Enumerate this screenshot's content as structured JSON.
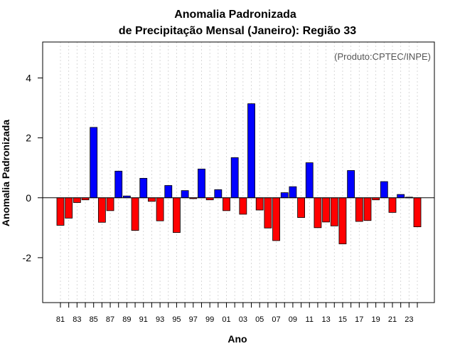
{
  "chart_data": {
    "type": "bar",
    "title": [
      "Anomalia Padronizada",
      "de Precipitação Mensal (Janeiro): Região 33"
    ],
    "xlabel": "Ano",
    "ylabel": "Anomalia Padronizada",
    "credit": "(Produto:CPTEC/INPE)",
    "ylim": [
      -3.5,
      5.2
    ],
    "yticks": [
      -2,
      0,
      2,
      4
    ],
    "ytick_labels": [
      "-2",
      "0",
      "2",
      "4"
    ],
    "x_tick_labels": [
      "81",
      "83",
      "85",
      "87",
      "89",
      "91",
      "93",
      "95",
      "97",
      "99",
      "01",
      "03",
      "05",
      "07",
      "09",
      "11",
      "13",
      "15",
      "17",
      "19",
      "21",
      "23"
    ],
    "categories": [
      "1981",
      "1982",
      "1983",
      "1984",
      "1985",
      "1986",
      "1987",
      "1988",
      "1989",
      "1990",
      "1991",
      "1992",
      "1993",
      "1994",
      "1995",
      "1996",
      "1997",
      "1998",
      "1999",
      "2000",
      "2001",
      "2002",
      "2003",
      "2004",
      "2005",
      "2006",
      "2007",
      "2008",
      "2009",
      "2010",
      "2011",
      "2012",
      "2013",
      "2014",
      "2015",
      "2016",
      "2017",
      "2018",
      "2019",
      "2020",
      "2021",
      "2022",
      "2023",
      "2024"
    ],
    "values": [
      -0.92,
      -0.68,
      -0.16,
      -0.07,
      2.35,
      -0.82,
      -0.43,
      0.89,
      0.06,
      -1.09,
      0.65,
      -0.12,
      -0.77,
      0.41,
      -1.16,
      0.24,
      -0.03,
      0.96,
      -0.07,
      0.27,
      -0.43,
      1.34,
      -0.55,
      3.14,
      -0.41,
      -1.01,
      -1.43,
      0.17,
      0.37,
      -0.66,
      1.17,
      -1.0,
      -0.81,
      -0.94,
      -1.54,
      0.91,
      -0.79,
      -0.76,
      -0.07,
      0.54,
      -0.49,
      0.11,
      0.02,
      -0.97
    ],
    "positive_color": "#0000ff",
    "negative_color": "#ff0000",
    "grid": true
  }
}
